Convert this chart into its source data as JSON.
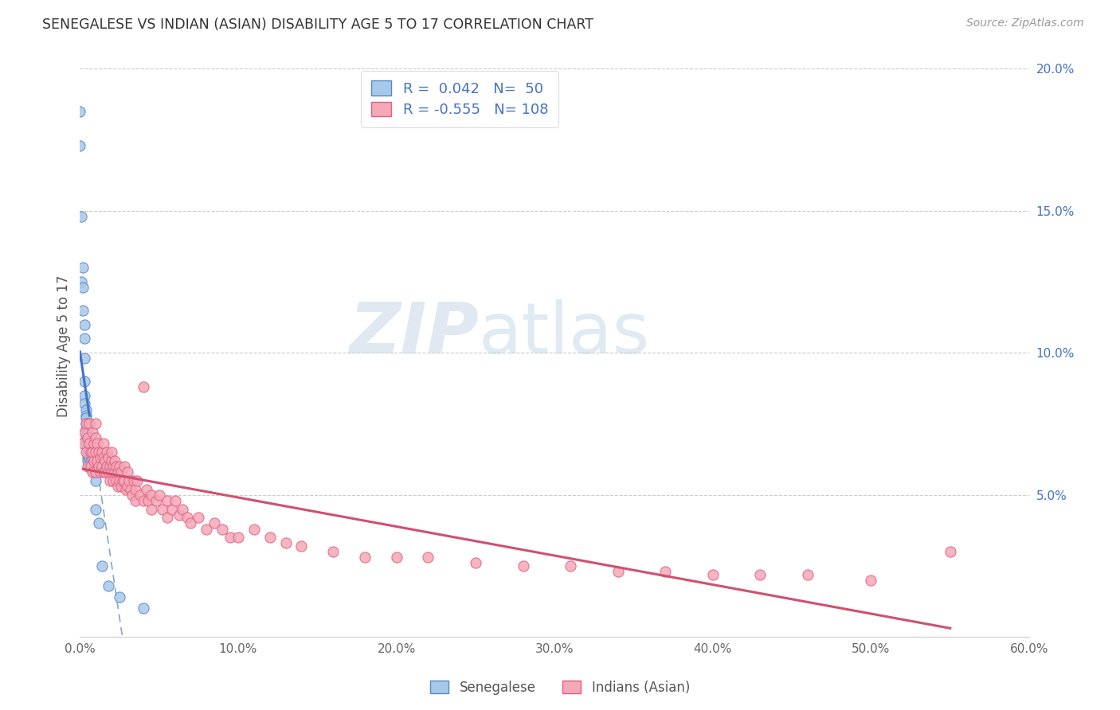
{
  "title": "SENEGALESE VS INDIAN (ASIAN) DISABILITY AGE 5 TO 17 CORRELATION CHART",
  "source": "Source: ZipAtlas.com",
  "ylabel": "Disability Age 5 to 17",
  "xlim": [
    0.0,
    0.6
  ],
  "ylim": [
    0.0,
    0.205
  ],
  "xticks": [
    0.0,
    0.1,
    0.2,
    0.3,
    0.4,
    0.5,
    0.6
  ],
  "xticklabels": [
    "0.0%",
    "10.0%",
    "20.0%",
    "30.0%",
    "40.0%",
    "50.0%",
    "60.0%"
  ],
  "yticks_right": [
    0.05,
    0.1,
    0.15,
    0.2
  ],
  "yticklabels_right": [
    "5.0%",
    "10.0%",
    "15.0%",
    "20.0%"
  ],
  "blue_R": 0.042,
  "blue_N": 50,
  "pink_R": -0.555,
  "pink_N": 108,
  "blue_color": "#A8C8E8",
  "pink_color": "#F4A8B8",
  "blue_edge_color": "#5588CC",
  "pink_edge_color": "#E06080",
  "blue_line_color": "#4472C4",
  "pink_line_color": "#D05070",
  "legend_label_blue": "Senegalese",
  "legend_label_pink": "Indians (Asian)",
  "blue_scatter_x": [
    0.0,
    0.0,
    0.001,
    0.001,
    0.002,
    0.002,
    0.002,
    0.003,
    0.003,
    0.003,
    0.003,
    0.003,
    0.003,
    0.004,
    0.004,
    0.004,
    0.004,
    0.004,
    0.004,
    0.004,
    0.004,
    0.005,
    0.005,
    0.005,
    0.005,
    0.005,
    0.005,
    0.005,
    0.005,
    0.005,
    0.005,
    0.006,
    0.006,
    0.006,
    0.006,
    0.006,
    0.007,
    0.007,
    0.007,
    0.008,
    0.008,
    0.008,
    0.009,
    0.01,
    0.01,
    0.012,
    0.014,
    0.018,
    0.025,
    0.04
  ],
  "blue_scatter_y": [
    0.185,
    0.173,
    0.148,
    0.125,
    0.13,
    0.123,
    0.115,
    0.11,
    0.105,
    0.098,
    0.09,
    0.085,
    0.082,
    0.08,
    0.078,
    0.077,
    0.075,
    0.073,
    0.072,
    0.07,
    0.068,
    0.075,
    0.073,
    0.072,
    0.07,
    0.068,
    0.067,
    0.066,
    0.065,
    0.063,
    0.062,
    0.07,
    0.068,
    0.065,
    0.063,
    0.06,
    0.068,
    0.065,
    0.062,
    0.065,
    0.063,
    0.06,
    0.058,
    0.055,
    0.045,
    0.04,
    0.025,
    0.018,
    0.014,
    0.01
  ],
  "pink_scatter_x": [
    0.002,
    0.003,
    0.004,
    0.004,
    0.005,
    0.005,
    0.006,
    0.006,
    0.007,
    0.007,
    0.008,
    0.008,
    0.008,
    0.009,
    0.009,
    0.01,
    0.01,
    0.01,
    0.01,
    0.011,
    0.011,
    0.012,
    0.012,
    0.013,
    0.013,
    0.014,
    0.014,
    0.015,
    0.015,
    0.015,
    0.016,
    0.016,
    0.017,
    0.017,
    0.018,
    0.018,
    0.019,
    0.019,
    0.02,
    0.02,
    0.02,
    0.021,
    0.021,
    0.022,
    0.022,
    0.023,
    0.023,
    0.024,
    0.024,
    0.025,
    0.025,
    0.026,
    0.026,
    0.027,
    0.028,
    0.028,
    0.029,
    0.03,
    0.03,
    0.031,
    0.032,
    0.033,
    0.034,
    0.035,
    0.035,
    0.036,
    0.038,
    0.04,
    0.04,
    0.042,
    0.043,
    0.045,
    0.045,
    0.048,
    0.05,
    0.052,
    0.055,
    0.055,
    0.058,
    0.06,
    0.063,
    0.065,
    0.068,
    0.07,
    0.075,
    0.08,
    0.085,
    0.09,
    0.095,
    0.1,
    0.11,
    0.12,
    0.13,
    0.14,
    0.16,
    0.18,
    0.2,
    0.22,
    0.25,
    0.28,
    0.31,
    0.34,
    0.37,
    0.4,
    0.43,
    0.46,
    0.5,
    0.55
  ],
  "pink_scatter_y": [
    0.068,
    0.072,
    0.065,
    0.075,
    0.07,
    0.06,
    0.068,
    0.075,
    0.065,
    0.06,
    0.072,
    0.065,
    0.058,
    0.068,
    0.062,
    0.075,
    0.07,
    0.065,
    0.058,
    0.068,
    0.062,
    0.065,
    0.06,
    0.063,
    0.058,
    0.065,
    0.06,
    0.068,
    0.063,
    0.058,
    0.062,
    0.058,
    0.065,
    0.06,
    0.063,
    0.058,
    0.06,
    0.055,
    0.062,
    0.058,
    0.065,
    0.06,
    0.055,
    0.062,
    0.058,
    0.055,
    0.06,
    0.058,
    0.053,
    0.06,
    0.055,
    0.058,
    0.053,
    0.055,
    0.06,
    0.055,
    0.052,
    0.058,
    0.053,
    0.055,
    0.052,
    0.05,
    0.055,
    0.052,
    0.048,
    0.055,
    0.05,
    0.088,
    0.048,
    0.052,
    0.048,
    0.05,
    0.045,
    0.048,
    0.05,
    0.045,
    0.048,
    0.042,
    0.045,
    0.048,
    0.043,
    0.045,
    0.042,
    0.04,
    0.042,
    0.038,
    0.04,
    0.038,
    0.035,
    0.035,
    0.038,
    0.035,
    0.033,
    0.032,
    0.03,
    0.028,
    0.028,
    0.028,
    0.026,
    0.025,
    0.025,
    0.023,
    0.023,
    0.022,
    0.022,
    0.022,
    0.02,
    0.03
  ]
}
